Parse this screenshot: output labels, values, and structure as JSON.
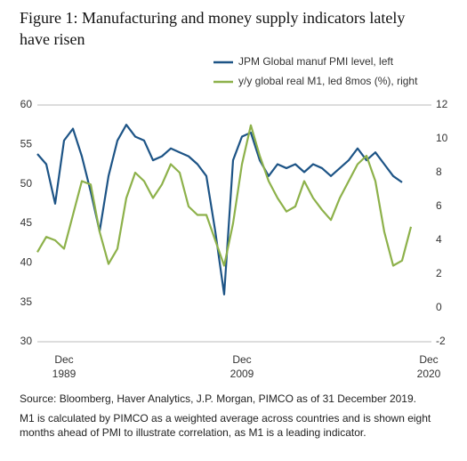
{
  "chart_data": {
    "type": "line",
    "title": "Figure 1: Manufacturing and money supply indicators lately have risen",
    "source": "Source: Bloomberg, Haver Analytics, J.P. Morgan, PIMCO as of 31 December 2019.",
    "note": "M1 is calculated by PIMCO as a weighted average across countries and is shown eight months ahead of PMI to illustrate correlation, as M1 is a leading indicator.",
    "categories": [
      null,
      null,
      null,
      "Dec 1989",
      null,
      null,
      null,
      null,
      null,
      null,
      null,
      null,
      null,
      null,
      null,
      null,
      null,
      null,
      null,
      null,
      null,
      null,
      null,
      "Dec 2009",
      null,
      null,
      null,
      null,
      null,
      null,
      null,
      null,
      null,
      null,
      null,
      null,
      null,
      null,
      null,
      null,
      null,
      null,
      null,
      null,
      "Dec 2020"
    ],
    "series": [
      {
        "name": "JPM Global manuf PMI level, left",
        "color": "#1d5486",
        "values": [
          53.8,
          52.5,
          47.5,
          55.5,
          57,
          53.5,
          49,
          44,
          51,
          55.5,
          57.5,
          56,
          55.5,
          53,
          53.5,
          54.5,
          54,
          53.5,
          52.5,
          51,
          44,
          36,
          53,
          56,
          56.5,
          53,
          51,
          52.5,
          52,
          52.5,
          51.5,
          52.5,
          52,
          51,
          52,
          53,
          54.5,
          53,
          54,
          52.5,
          51,
          50.2,
          null,
          null,
          null
        ]
      },
      {
        "name": "y/y global real M1, led 8mos (%), right",
        "color": "#8db14a",
        "axis": "y2",
        "values": [
          3.3,
          4.2,
          4.0,
          3.5,
          5.5,
          7.5,
          7.3,
          4.5,
          2.6,
          3.5,
          6.5,
          8,
          7.5,
          6.5,
          7.3,
          8.5,
          8.0,
          6.0,
          5.5,
          5.5,
          4.0,
          2.5,
          5.0,
          8.5,
          10.8,
          9,
          7.5,
          6.5,
          5.7,
          6.0,
          7.5,
          6.5,
          5.8,
          5.2,
          6.5,
          7.5,
          8.5,
          9.0,
          7.5,
          4.5,
          2.5,
          2.8,
          4.8,
          null,
          null
        ]
      }
    ],
    "ylim": [
      30,
      60
    ],
    "yticks": [
      30,
      35,
      40,
      45,
      50,
      55,
      60
    ],
    "y2lim": [
      -2,
      12
    ],
    "y2ticks": [
      -2,
      0,
      2,
      4,
      6,
      8,
      10,
      12
    ],
    "grid": false
  }
}
